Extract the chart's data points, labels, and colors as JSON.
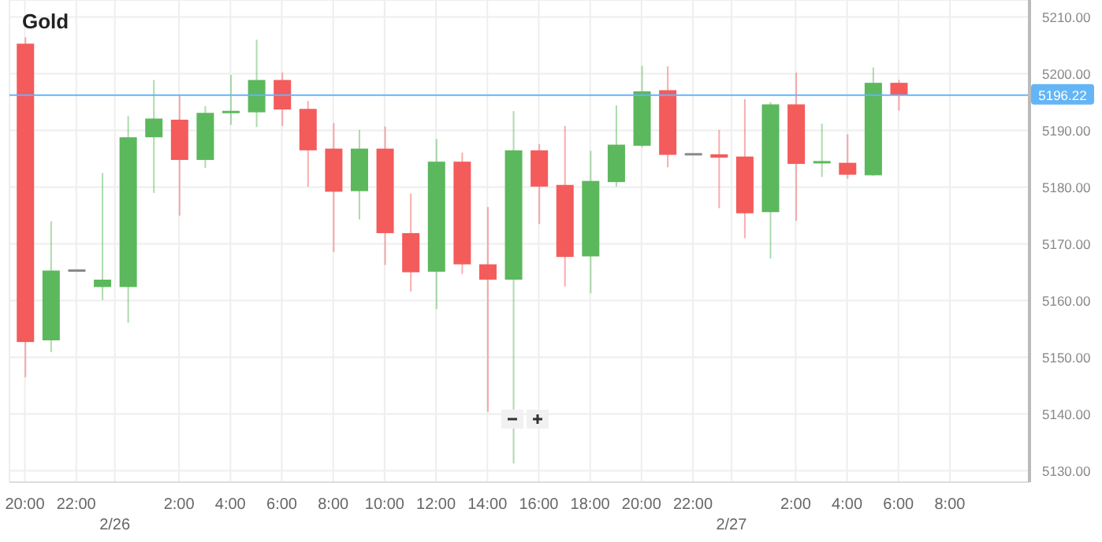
{
  "chart_data": {
    "type": "candlestick",
    "title": "Gold",
    "x": [
      "--02-25T20:00",
      "--02-25T21:00",
      "--02-25T22:00",
      "--02-25T23:00",
      "--02-26T00:00",
      "--02-26T01:00",
      "--02-26T02:00",
      "--02-26T03:00",
      "--02-26T04:00",
      "--02-26T05:00",
      "--02-26T06:00",
      "--02-26T07:00",
      "--02-26T08:00",
      "--02-26T09:00",
      "--02-26T10:00",
      "--02-26T11:00",
      "--02-26T12:00",
      "--02-26T13:00",
      "--02-26T14:00",
      "--02-26T15:00",
      "--02-26T16:00",
      "--02-26T17:00",
      "--02-26T18:00",
      "--02-26T19:00",
      "--02-26T20:00",
      "--02-26T21:00",
      "--02-26T22:00",
      "--02-26T23:00",
      "--02-27T00:00",
      "--02-27T01:00",
      "--02-27T02:00",
      "--02-27T03:00",
      "--02-27T04:00",
      "--02-27T05:00",
      "--02-27T06:00"
    ],
    "ohlc": [
      [
        5205.3,
        5206.4,
        5146.5,
        5152.7
      ],
      [
        5153.0,
        5174.0,
        5150.9,
        5165.3
      ],
      [
        5165.3,
        5165.3,
        5165.3,
        5165.3
      ],
      [
        5162.4,
        5182.5,
        5160.1,
        5163.7
      ],
      [
        5162.4,
        5192.5,
        5156.1,
        5188.8
      ],
      [
        5188.8,
        5198.9,
        5179.0,
        5192.1
      ],
      [
        5191.9,
        5196.2,
        5175.0,
        5184.8
      ],
      [
        5184.8,
        5194.3,
        5183.4,
        5193.1
      ],
      [
        5193.1,
        5199.8,
        5191.0,
        5193.4
      ],
      [
        5193.2,
        5206.0,
        5190.6,
        5198.9
      ],
      [
        5198.9,
        5200.2,
        5190.8,
        5193.7
      ],
      [
        5193.8,
        5195.2,
        5180.1,
        5186.5
      ],
      [
        5186.8,
        5191.3,
        5168.6,
        5179.2
      ],
      [
        5179.3,
        5190.1,
        5174.3,
        5186.8
      ],
      [
        5186.8,
        5190.7,
        5166.3,
        5171.9
      ],
      [
        5171.9,
        5178.9,
        5161.6,
        5165.0
      ],
      [
        5165.1,
        5188.5,
        5158.5,
        5184.5
      ],
      [
        5184.5,
        5186.1,
        5164.7,
        5166.4
      ],
      [
        5166.4,
        5176.5,
        5140.4,
        5163.7
      ],
      [
        5163.7,
        5193.4,
        5131.3,
        5186.5
      ],
      [
        5186.5,
        5187.6,
        5173.5,
        5180.1
      ],
      [
        5180.4,
        5190.8,
        5162.5,
        5167.7
      ],
      [
        5167.8,
        5186.4,
        5161.3,
        5181.1
      ],
      [
        5180.9,
        5194.4,
        5180.1,
        5187.5
      ],
      [
        5187.3,
        5201.4,
        5187.0,
        5196.9
      ],
      [
        5197.1,
        5201.3,
        5183.5,
        5185.7
      ],
      [
        5185.8,
        5185.8,
        5185.8,
        5185.8
      ],
      [
        5185.8,
        5190.1,
        5176.3,
        5185.2
      ],
      [
        5185.4,
        5195.5,
        5171.0,
        5175.4
      ],
      [
        5175.6,
        5195.0,
        5167.4,
        5194.6
      ],
      [
        5194.6,
        5200.2,
        5174.1,
        5184.1
      ],
      [
        5184.3,
        5191.2,
        5181.8,
        5184.5
      ],
      [
        5184.3,
        5189.3,
        5181.5,
        5182.2
      ],
      [
        5182.1,
        5201.1,
        5182.0,
        5198.4
      ],
      [
        5198.4,
        5198.9,
        5193.5,
        5196.22
      ]
    ],
    "colors": [
      "#f45b5b",
      "#5cb85c",
      "#888888",
      "#5cb85c",
      "#5cb85c",
      "#5cb85c",
      "#f45b5b",
      "#5cb85c",
      "#5cb85c",
      "#5cb85c",
      "#f45b5b",
      "#f45b5b",
      "#f45b5b",
      "#5cb85c",
      "#f45b5b",
      "#f45b5b",
      "#5cb85c",
      "#f45b5b",
      "#f45b5b",
      "#5cb85c",
      "#f45b5b",
      "#f45b5b",
      "#5cb85c",
      "#5cb85c",
      "#5cb85c",
      "#f45b5b",
      "#888888",
      "#f45b5b",
      "#f45b5b",
      "#5cb85c",
      "#f45b5b",
      "#5cb85c",
      "#f45b5b",
      "#5cb85c",
      "#f45b5b"
    ],
    "xlim": [
      "--02-25T19:24",
      "--02-27T11:06"
    ],
    "xticks": [
      {
        "value": "--02-25T20:00",
        "label": "20:00"
      },
      {
        "value": "--02-25T22:00",
        "label": "22:00"
      },
      {
        "value": "--02-25T23:30",
        "label": null
      },
      {
        "value": "--02-26T02:00",
        "label": "2:00"
      },
      {
        "value": "--02-26T04:00",
        "label": "4:00"
      },
      {
        "value": "--02-26T06:00",
        "label": "6:00"
      },
      {
        "value": "--02-26T08:00",
        "label": "8:00"
      },
      {
        "value": "--02-26T10:00",
        "label": "10:00"
      },
      {
        "value": "--02-26T12:00",
        "label": "12:00"
      },
      {
        "value": "--02-26T14:00",
        "label": "14:00"
      },
      {
        "value": "--02-26T16:00",
        "label": "16:00"
      },
      {
        "value": "--02-26T18:00",
        "label": "18:00"
      },
      {
        "value": "--02-26T20:00",
        "label": "20:00"
      },
      {
        "value": "--02-26T22:00",
        "label": "22:00"
      },
      {
        "value": "--02-26T23:30",
        "label": null
      },
      {
        "value": "--02-27T02:00",
        "label": "2:00"
      },
      {
        "value": "--02-27T04:00",
        "label": "4:00"
      },
      {
        "value": "--02-27T06:00",
        "label": "6:00"
      },
      {
        "value": "--02-27T08:00",
        "label": "8:00"
      }
    ],
    "annotations": [
      "2/26",
      "2/27"
    ],
    "ylim": [
      5128,
      5213
    ],
    "yticks": [
      {
        "value": 5130,
        "label": "5130.00"
      },
      {
        "value": 5140,
        "label": "5140.00"
      },
      {
        "value": 5150,
        "label": "5150.00"
      },
      {
        "value": 5160,
        "label": "5160.00"
      },
      {
        "value": 5170,
        "label": "5170.00"
      },
      {
        "value": 5180,
        "label": "5180.00"
      },
      {
        "value": 5190,
        "label": "5190.00"
      },
      {
        "value": 5200,
        "label": "5200.00"
      },
      {
        "value": 5210,
        "label": "5210.00"
      }
    ],
    "ref_lines": [
      {
        "axis": "y",
        "value": 5196.22,
        "label": "5196.22",
        "color": "#64b5f6"
      }
    ],
    "grid": true,
    "legend": false
  }
}
